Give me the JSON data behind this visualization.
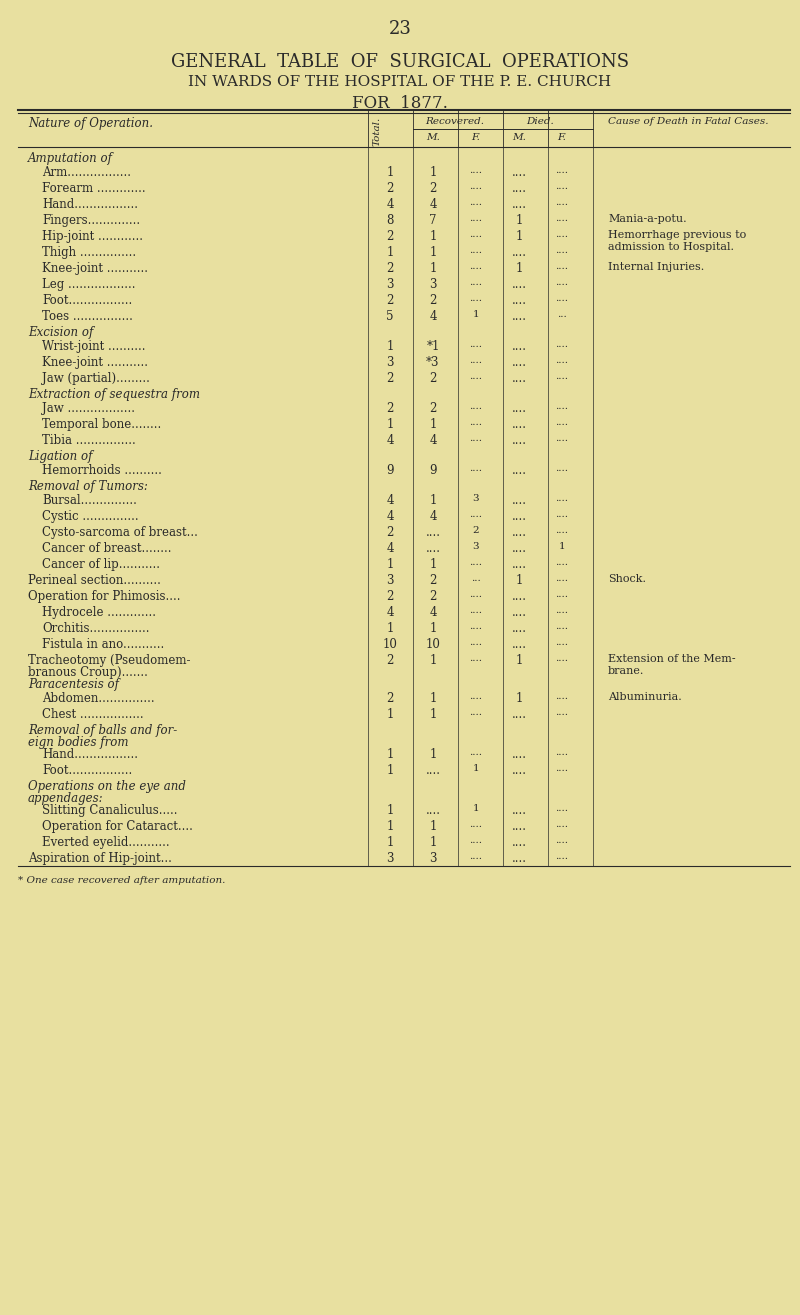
{
  "page_number": "23",
  "title_line1": "GENERAL  TABLE  OF  SURGICAL  OPERATIONS",
  "title_line2": "IN WARDS OF THE HOSPITAL OF THE P. E. CHURCH",
  "title_line3": "FOR  1877.",
  "bg_color": "#e8e0a0",
  "text_color": "#2a2a2a",
  "footnote": "* One case recovered after amputation.",
  "rows": [
    {
      "label": "Amputation of",
      "indent": 0,
      "total": "",
      "rec_m": "",
      "rec_f": "",
      "died_m": "",
      "died_f": "",
      "cause": "",
      "header": true
    },
    {
      "label": "Arm.................",
      "indent": 1,
      "total": "1",
      "rec_m": "1",
      "rec_f": "....",
      "died_m": "....",
      "died_f": "....",
      "cause": ""
    },
    {
      "label": "Forearm .............",
      "indent": 1,
      "total": "2",
      "rec_m": "2",
      "rec_f": "....",
      "died_m": "....",
      "died_f": "....",
      "cause": ""
    },
    {
      "label": "Hand.................",
      "indent": 1,
      "total": "4",
      "rec_m": "4",
      "rec_f": "....",
      "died_m": "....",
      "died_f": "....",
      "cause": ""
    },
    {
      "label": "Fingers..............",
      "indent": 1,
      "total": "8",
      "rec_m": "7",
      "rec_f": "....",
      "died_m": "1",
      "died_f": "....",
      "cause": "Mania-a-potu."
    },
    {
      "label": "Hip-joint ............",
      "indent": 1,
      "total": "2",
      "rec_m": "1",
      "rec_f": "....",
      "died_m": "1",
      "died_f": "....",
      "cause": "Hemorrhage previous to\nadmission to Hospital."
    },
    {
      "label": "Thigh ...............",
      "indent": 1,
      "total": "1",
      "rec_m": "1",
      "rec_f": "....",
      "died_m": "....",
      "died_f": "....",
      "cause": ""
    },
    {
      "label": "Knee-joint ...........",
      "indent": 1,
      "total": "2",
      "rec_m": "1",
      "rec_f": "....",
      "died_m": "1",
      "died_f": "....",
      "cause": "Internal Injuries."
    },
    {
      "label": "Leg ..................",
      "indent": 1,
      "total": "3",
      "rec_m": "3",
      "rec_f": "....",
      "died_m": "....",
      "died_f": "....",
      "cause": ""
    },
    {
      "label": "Foot.................",
      "indent": 1,
      "total": "2",
      "rec_m": "2",
      "rec_f": "....",
      "died_m": "....",
      "died_f": "....",
      "cause": ""
    },
    {
      "label": "Toes ................",
      "indent": 1,
      "total": "5",
      "rec_m": "4",
      "rec_f": "1",
      "died_m": "....",
      "died_f": "...",
      "cause": ""
    },
    {
      "label": "Excision of",
      "indent": 0,
      "total": "",
      "rec_m": "",
      "rec_f": "",
      "died_m": "",
      "died_f": "",
      "cause": "",
      "header": true
    },
    {
      "label": "Wrist-joint ..........",
      "indent": 1,
      "total": "1",
      "rec_m": "*1",
      "rec_f": "....",
      "died_m": "....",
      "died_f": "....",
      "cause": ""
    },
    {
      "label": "Knee-joint ...........",
      "indent": 1,
      "total": "3",
      "rec_m": "*3",
      "rec_f": "....",
      "died_m": "....",
      "died_f": "....",
      "cause": ""
    },
    {
      "label": "Jaw (partial).........",
      "indent": 1,
      "total": "2",
      "rec_m": "2",
      "rec_f": "....",
      "died_m": "....",
      "died_f": "....",
      "cause": ""
    },
    {
      "label": "Extraction of sequestra from",
      "indent": 0,
      "total": "",
      "rec_m": "",
      "rec_f": "",
      "died_m": "",
      "died_f": "",
      "cause": "",
      "header": true
    },
    {
      "label": "Jaw ..................",
      "indent": 1,
      "total": "2",
      "rec_m": "2",
      "rec_f": "....",
      "died_m": "....",
      "died_f": "....",
      "cause": ""
    },
    {
      "label": "Temporal bone........",
      "indent": 1,
      "total": "1",
      "rec_m": "1",
      "rec_f": "....",
      "died_m": "....",
      "died_f": "....",
      "cause": ""
    },
    {
      "label": "Tibia ................",
      "indent": 1,
      "total": "4",
      "rec_m": "4",
      "rec_f": "....",
      "died_m": "....",
      "died_f": "....",
      "cause": ""
    },
    {
      "label": "Ligation of",
      "indent": 0,
      "total": "",
      "rec_m": "",
      "rec_f": "",
      "died_m": "",
      "died_f": "",
      "cause": "",
      "header": true
    },
    {
      "label": "Hemorrhoids ..........",
      "indent": 1,
      "total": "9",
      "rec_m": "9",
      "rec_f": "....",
      "died_m": "....",
      "died_f": "....",
      "cause": ""
    },
    {
      "label": "Removal of Tumors:",
      "indent": 0,
      "total": "",
      "rec_m": "",
      "rec_f": "",
      "died_m": "",
      "died_f": "",
      "cause": "",
      "header": true
    },
    {
      "label": "Bursal...............",
      "indent": 1,
      "total": "4",
      "rec_m": "1",
      "rec_f": "3",
      "died_m": "....",
      "died_f": "....",
      "cause": ""
    },
    {
      "label": "Cystic ...............",
      "indent": 1,
      "total": "4",
      "rec_m": "4",
      "rec_f": "....",
      "died_m": "....",
      "died_f": "....",
      "cause": ""
    },
    {
      "label": "Cysto-sarcoma of breast...",
      "indent": 1,
      "total": "2",
      "rec_m": "....",
      "rec_f": "2",
      "died_m": "....",
      "died_f": "....",
      "cause": ""
    },
    {
      "label": "Cancer of breast........",
      "indent": 1,
      "total": "4",
      "rec_m": "....",
      "rec_f": "3",
      "died_m": "....",
      "died_f": "1",
      "cause": ""
    },
    {
      "label": "Cancer of lip...........",
      "indent": 1,
      "total": "1",
      "rec_m": "1",
      "rec_f": "....",
      "died_m": "....",
      "died_f": "....",
      "cause": ""
    },
    {
      "label": "Perineal section..........",
      "indent": 0,
      "total": "3",
      "rec_m": "2",
      "rec_f": "...",
      "died_m": "1",
      "died_f": "....",
      "cause": "Shock."
    },
    {
      "label": "Operation for Phimosis....",
      "indent": 0,
      "total": "2",
      "rec_m": "2",
      "rec_f": "....",
      "died_m": "....",
      "died_f": "....",
      "cause": ""
    },
    {
      "label": "Hydrocele .............",
      "indent": 1,
      "total": "4",
      "rec_m": "4",
      "rec_f": "....",
      "died_m": "....",
      "died_f": "....",
      "cause": ""
    },
    {
      "label": "Orchitis................",
      "indent": 1,
      "total": "1",
      "rec_m": "1",
      "rec_f": "....",
      "died_m": "....",
      "died_f": "....",
      "cause": ""
    },
    {
      "label": "Fistula in ano...........",
      "indent": 1,
      "total": "10",
      "rec_m": "10",
      "rec_f": "....",
      "died_m": "....",
      "died_f": "....",
      "cause": ""
    },
    {
      "label": "Tracheotomy (Pseudomem-\nbranous Croup).......",
      "indent": 0,
      "total": "2",
      "rec_m": "1",
      "rec_f": "....",
      "died_m": "1",
      "died_f": "....",
      "cause": "Extension of the Mem-\nbrane."
    },
    {
      "label": "Paracentesis of",
      "indent": 0,
      "total": "",
      "rec_m": "",
      "rec_f": "",
      "died_m": "",
      "died_f": "",
      "cause": "",
      "header": true
    },
    {
      "label": "Abdomen...............",
      "indent": 1,
      "total": "2",
      "rec_m": "1",
      "rec_f": "....",
      "died_m": "1",
      "died_f": "....",
      "cause": "Albuminuria."
    },
    {
      "label": "Chest .................",
      "indent": 1,
      "total": "1",
      "rec_m": "1",
      "rec_f": "....",
      "died_m": "....",
      "died_f": "....",
      "cause": ""
    },
    {
      "label": "Removal of balls and for-\neign bodies from",
      "indent": 0,
      "total": "",
      "rec_m": "",
      "rec_f": "",
      "died_m": "",
      "died_f": "",
      "cause": "",
      "header": true
    },
    {
      "label": "Hand.................",
      "indent": 1,
      "total": "1",
      "rec_m": "1",
      "rec_f": "....",
      "died_m": "....",
      "died_f": "....",
      "cause": ""
    },
    {
      "label": "Foot.................",
      "indent": 1,
      "total": "1",
      "rec_m": "....",
      "rec_f": "1",
      "died_m": "....",
      "died_f": "....",
      "cause": ""
    },
    {
      "label": "Operations on the eye and\nappendages:",
      "indent": 0,
      "total": "",
      "rec_m": "",
      "rec_f": "",
      "died_m": "",
      "died_f": "",
      "cause": "",
      "header": true
    },
    {
      "label": "Slitting Canaliculus.....",
      "indent": 1,
      "total": "1",
      "rec_m": "....",
      "rec_f": "1",
      "died_m": "....",
      "died_f": "....",
      "cause": ""
    },
    {
      "label": "Operation for Cataract....",
      "indent": 1,
      "total": "1",
      "rec_m": "1",
      "rec_f": "....",
      "died_m": "....",
      "died_f": "....",
      "cause": ""
    },
    {
      "label": "Everted eyelid...........",
      "indent": 1,
      "total": "1",
      "rec_m": "1",
      "rec_f": "....",
      "died_m": "....",
      "died_f": "....",
      "cause": ""
    },
    {
      "label": "Aspiration of Hip-joint...",
      "indent": 0,
      "total": "3",
      "rec_m": "3",
      "rec_f": "....",
      "died_m": "....",
      "died_f": "....",
      "cause": ""
    }
  ]
}
